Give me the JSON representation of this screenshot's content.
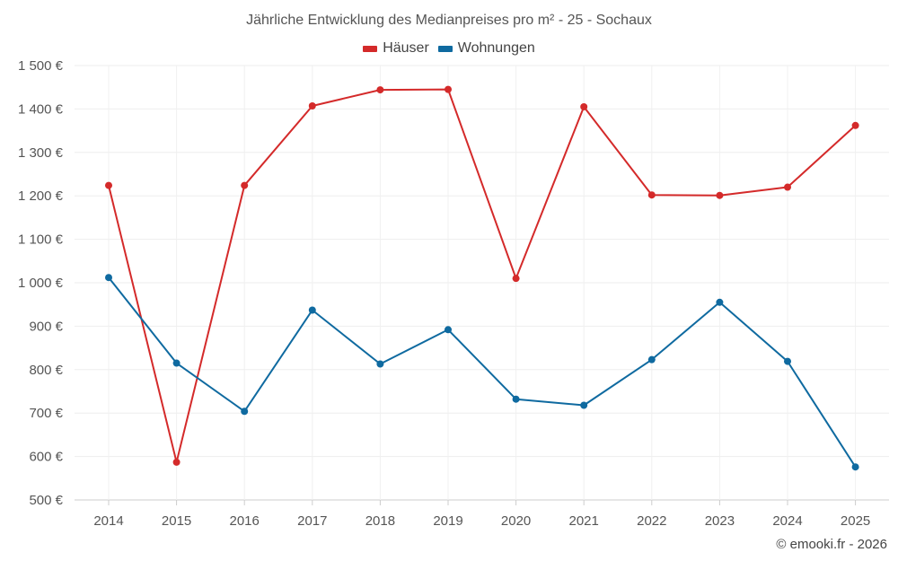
{
  "chart_data": {
    "type": "line",
    "title": "Jährliche Entwicklung des Medianpreises pro m² - 25 - Sochaux",
    "categories": [
      "2014",
      "2015",
      "2016",
      "2017",
      "2018",
      "2019",
      "2020",
      "2021",
      "2022",
      "2023",
      "2024",
      "2025"
    ],
    "ylim": [
      500,
      1500
    ],
    "yticks": [
      500,
      600,
      700,
      800,
      900,
      1000,
      1100,
      1200,
      1300,
      1400,
      1500
    ],
    "ytick_labels": [
      "500 €",
      "600 €",
      "700 €",
      "800 €",
      "900 €",
      "1 000 €",
      "1 100 €",
      "1 200 €",
      "1 300 €",
      "1 400 €",
      "1 500 €"
    ],
    "grid": true,
    "legend_position": "top-center",
    "series": [
      {
        "name": "Häuser",
        "color": "#d42a2a",
        "values": [
          1224,
          587,
          1224,
          1407,
          1444,
          1445,
          1010,
          1405,
          1202,
          1201,
          1220,
          1362
        ]
      },
      {
        "name": "Wohnungen",
        "color": "#0f6aa0",
        "values": [
          1012,
          815,
          704,
          937,
          813,
          892,
          732,
          718,
          823,
          955,
          819,
          576
        ]
      }
    ]
  },
  "credit": "© emooki.fr - 2026"
}
